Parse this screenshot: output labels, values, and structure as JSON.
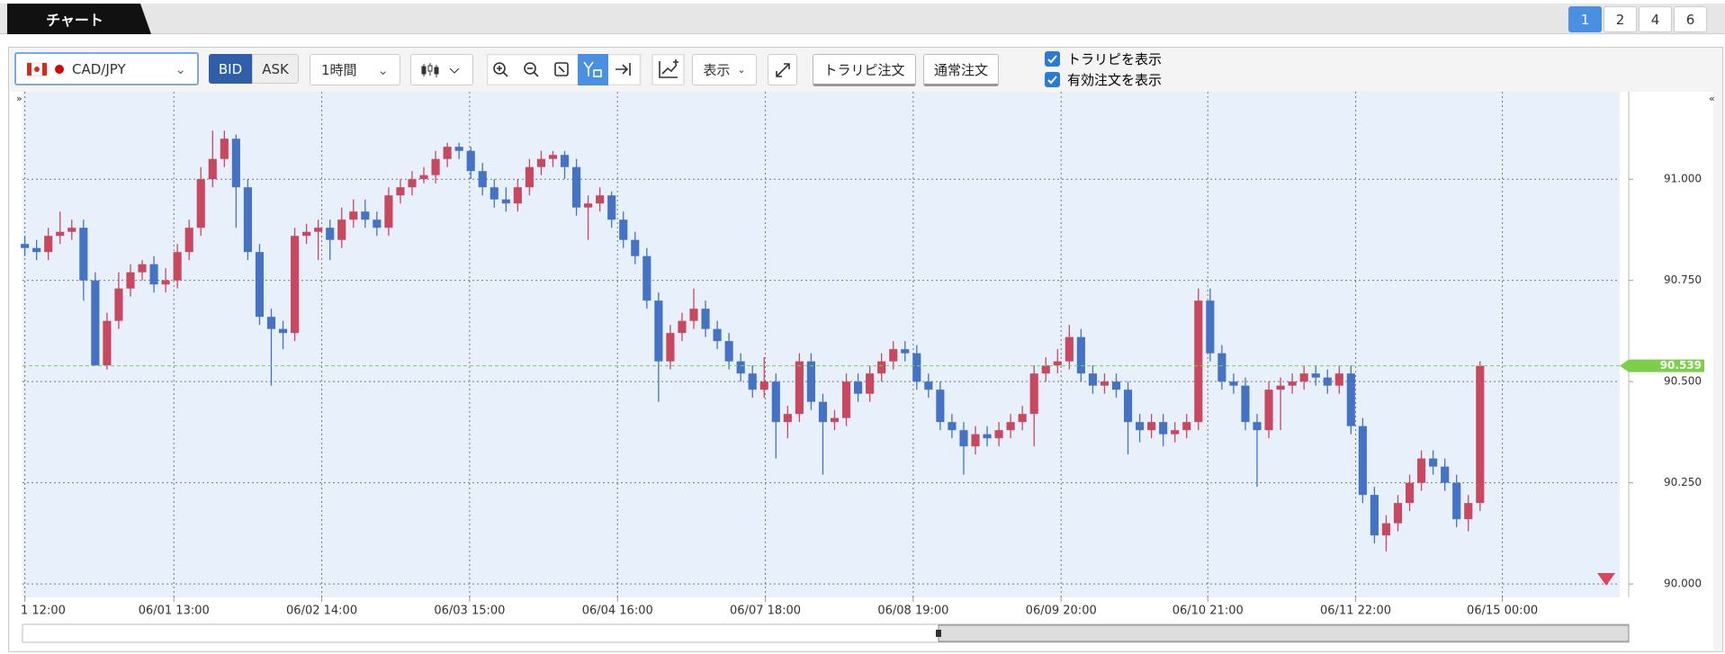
{
  "ui": {
    "tab": "チャート",
    "layouts": [
      "1",
      "2",
      "4",
      "6"
    ],
    "pair": "CAD/JPY",
    "bid": "BID",
    "ask": "ASK",
    "timeframe": "1時間",
    "display": "表示",
    "order_trarepi": "トラリピ注文",
    "order_normal": "通常注文",
    "show_trarepi": "トラリピを表示",
    "show_orders": "有効注文を表示"
  },
  "chart_data": {
    "type": "candlestick",
    "up_color": "#c9475f",
    "down_color": "#4472c4",
    "grid": true,
    "open": [
      90.84,
      90.83,
      90.82,
      90.86,
      90.87,
      90.88,
      90.75,
      90.54,
      90.65,
      90.73,
      90.77,
      90.79,
      90.74,
      90.75,
      90.82,
      90.88,
      91.0,
      91.05,
      91.1,
      90.98,
      90.82,
      90.66,
      90.63,
      90.62,
      90.86,
      90.87,
      90.88,
      90.85,
      90.9,
      90.92,
      90.9,
      90.88,
      90.96,
      90.98,
      91.0,
      91.01,
      91.05,
      91.08,
      91.07,
      91.02,
      90.98,
      90.95,
      90.94,
      90.98,
      91.03,
      91.05,
      91.06,
      91.03,
      90.93,
      90.94,
      90.96,
      90.9,
      90.85,
      90.81,
      90.7,
      90.55,
      90.62,
      90.65,
      90.68,
      90.63,
      90.6,
      90.55,
      90.52,
      90.48,
      90.5,
      90.4,
      90.42,
      90.55,
      90.45,
      90.4,
      90.41,
      90.5,
      90.47,
      90.52,
      90.55,
      90.58,
      90.57,
      90.5,
      90.48,
      90.4,
      90.38,
      90.34,
      90.37,
      90.36,
      90.38,
      90.4,
      90.42,
      90.52,
      90.54,
      90.55,
      90.61,
      90.52,
      90.49,
      90.5,
      90.48,
      90.4,
      90.38,
      90.4,
      90.37,
      90.38,
      90.4,
      90.7,
      90.57,
      90.5,
      90.49,
      90.4,
      90.38,
      90.48,
      90.49,
      90.5,
      90.52,
      90.51,
      90.49,
      90.52,
      90.39,
      90.22,
      90.12,
      90.15,
      90.2,
      90.25,
      90.31,
      90.29,
      90.25,
      90.16,
      90.2
    ],
    "high": [
      90.86,
      90.85,
      90.88,
      90.92,
      90.9,
      90.9,
      90.77,
      90.67,
      90.77,
      90.79,
      90.8,
      90.81,
      90.78,
      90.84,
      90.9,
      91.03,
      91.12,
      91.12,
      91.11,
      91.0,
      90.84,
      90.68,
      90.65,
      90.88,
      90.89,
      90.9,
      90.9,
      90.93,
      90.95,
      90.95,
      90.92,
      90.98,
      91.0,
      91.02,
      91.03,
      91.07,
      91.09,
      91.09,
      91.08,
      91.04,
      91.0,
      90.98,
      91.0,
      91.05,
      91.07,
      91.07,
      91.07,
      91.05,
      90.96,
      90.98,
      90.97,
      90.92,
      90.87,
      90.83,
      90.72,
      90.64,
      90.67,
      90.73,
      90.7,
      90.65,
      90.62,
      90.57,
      90.54,
      90.56,
      90.52,
      90.44,
      90.57,
      90.57,
      90.47,
      90.43,
      90.52,
      90.52,
      90.54,
      90.57,
      90.6,
      90.6,
      90.59,
      90.52,
      90.5,
      90.42,
      90.4,
      90.39,
      90.39,
      90.4,
      90.42,
      90.44,
      90.54,
      90.56,
      90.58,
      90.64,
      90.63,
      90.54,
      90.52,
      90.52,
      90.5,
      90.42,
      90.42,
      90.42,
      90.4,
      90.42,
      90.73,
      90.73,
      90.59,
      90.52,
      90.51,
      90.42,
      90.5,
      90.51,
      90.52,
      90.54,
      90.54,
      90.53,
      90.54,
      90.54,
      90.41,
      90.24,
      90.17,
      90.22,
      90.27,
      90.33,
      90.33,
      90.31,
      90.27,
      90.22,
      90.55
    ],
    "low": [
      90.81,
      90.8,
      90.8,
      90.84,
      90.85,
      90.7,
      90.54,
      90.53,
      90.63,
      90.71,
      90.75,
      90.72,
      90.72,
      90.73,
      90.8,
      90.86,
      90.98,
      91.03,
      90.88,
      90.8,
      90.64,
      90.49,
      90.58,
      90.6,
      90.84,
      90.8,
      90.8,
      90.83,
      90.88,
      90.88,
      90.86,
      90.86,
      90.94,
      90.96,
      90.99,
      90.99,
      91.03,
      91.05,
      91.0,
      90.96,
      90.93,
      90.92,
      90.92,
      90.96,
      91.01,
      91.03,
      91.0,
      90.91,
      90.85,
      90.92,
      90.88,
      90.83,
      90.79,
      90.68,
      90.45,
      90.53,
      90.6,
      90.63,
      90.61,
      90.58,
      90.53,
      90.5,
      90.46,
      90.46,
      90.31,
      90.36,
      90.4,
      90.43,
      90.27,
      90.38,
      90.39,
      90.45,
      90.45,
      90.5,
      90.53,
      90.55,
      90.48,
      90.46,
      90.38,
      90.36,
      90.27,
      90.32,
      90.34,
      90.34,
      90.36,
      90.38,
      90.34,
      90.5,
      90.52,
      90.53,
      90.5,
      90.47,
      90.47,
      90.46,
      90.32,
      90.35,
      90.36,
      90.34,
      90.35,
      90.36,
      90.38,
      90.55,
      90.48,
      90.47,
      90.38,
      90.24,
      90.36,
      90.38,
      90.47,
      90.48,
      90.49,
      90.47,
      90.47,
      90.37,
      90.2,
      90.1,
      90.08,
      90.13,
      90.18,
      90.23,
      90.27,
      90.23,
      90.14,
      90.13,
      90.18
    ],
    "close": [
      90.83,
      90.82,
      90.86,
      90.87,
      90.88,
      90.75,
      90.54,
      90.65,
      90.73,
      90.77,
      90.79,
      90.74,
      90.75,
      90.82,
      90.88,
      91.0,
      91.05,
      91.1,
      90.98,
      90.82,
      90.66,
      90.63,
      90.62,
      90.86,
      90.87,
      90.88,
      90.85,
      90.9,
      90.92,
      90.9,
      90.88,
      90.96,
      90.98,
      91.0,
      91.01,
      91.05,
      91.08,
      91.07,
      91.02,
      90.98,
      90.95,
      90.94,
      90.98,
      91.03,
      91.05,
      91.06,
      91.03,
      90.93,
      90.94,
      90.96,
      90.9,
      90.85,
      90.81,
      90.7,
      90.55,
      90.62,
      90.65,
      90.68,
      90.63,
      90.6,
      90.55,
      90.52,
      90.48,
      90.5,
      90.4,
      90.42,
      90.55,
      90.45,
      90.4,
      90.41,
      90.5,
      90.47,
      90.52,
      90.55,
      90.58,
      90.57,
      90.5,
      90.48,
      90.4,
      90.38,
      90.34,
      90.37,
      90.36,
      90.38,
      90.4,
      90.42,
      90.52,
      90.54,
      90.55,
      90.61,
      90.52,
      90.49,
      90.5,
      90.48,
      90.4,
      90.38,
      90.4,
      90.37,
      90.38,
      90.4,
      90.7,
      90.57,
      90.5,
      90.49,
      90.4,
      90.38,
      90.48,
      90.49,
      90.5,
      90.52,
      90.51,
      90.49,
      90.52,
      90.39,
      90.22,
      90.12,
      90.15,
      90.2,
      90.25,
      90.31,
      90.29,
      90.25,
      90.16,
      90.2,
      90.539
    ],
    "last_price": 90.539,
    "xlim": [
      -0.2,
      135.9
    ],
    "xticks": [
      {
        "value": 0,
        "label": "1 12:00"
      },
      {
        "value": 12.7,
        "label": "06/01 13:00"
      },
      {
        "value": 25.3,
        "label": "06/02 14:00"
      },
      {
        "value": 37.9,
        "label": "06/03 15:00"
      },
      {
        "value": 50.5,
        "label": "06/04 16:00"
      },
      {
        "value": 63.1,
        "label": "06/07 18:00"
      },
      {
        "value": 75.7,
        "label": "06/08 19:00"
      },
      {
        "value": 88.3,
        "label": "06/09 20:00"
      },
      {
        "value": 100.8,
        "label": "06/10 21:00"
      },
      {
        "value": 113.4,
        "label": "06/11 22:00"
      },
      {
        "value": 125.9,
        "label": "06/15 00:00"
      }
    ],
    "ylim": [
      89.967,
      91.216
    ],
    "yticks": [
      {
        "value": 90,
        "label": "90.000"
      },
      {
        "value": 90.25,
        "label": "90.250"
      },
      {
        "value": 90.5,
        "label": "90.500"
      },
      {
        "value": 90.75,
        "label": "90.750"
      },
      {
        "value": 91,
        "label": "91.000"
      }
    ]
  }
}
